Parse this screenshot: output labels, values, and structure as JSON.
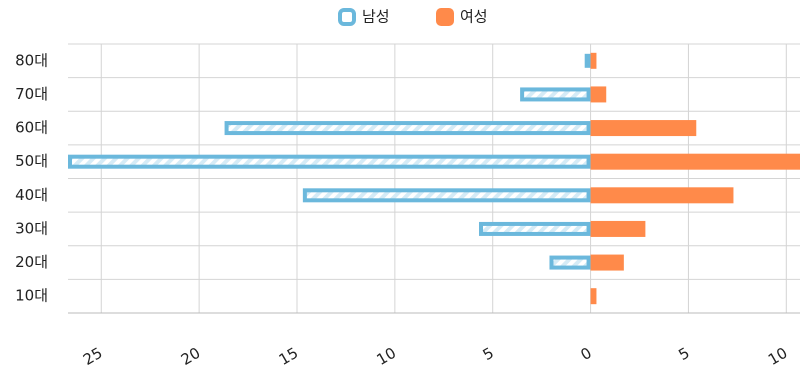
{
  "chart_data": {
    "type": "bar",
    "orientation": "horizontal",
    "categories": [
      "80대",
      "70대",
      "60대",
      "50대",
      "40대",
      "30대",
      "20대",
      "10대"
    ],
    "series": [
      {
        "name": "남성",
        "color": "#6bb8dc",
        "values": [
          -0.3,
          -3.6,
          -18.7,
          -26.7,
          -14.7,
          -5.7,
          -2.1,
          0
        ]
      },
      {
        "name": "여성",
        "color": "#ff8a4a",
        "values": [
          0.3,
          0.8,
          5.4,
          10.7,
          7.3,
          2.8,
          1.7,
          0.3
        ]
      }
    ],
    "xlim": [
      -26.7,
      10.7
    ],
    "xticks": [
      {
        "value": -25,
        "label": "25"
      },
      {
        "value": -20,
        "label": "20"
      },
      {
        "value": -15,
        "label": "15"
      },
      {
        "value": -10,
        "label": "10"
      },
      {
        "value": -5,
        "label": "5"
      },
      0,
      5,
      10
    ],
    "grid": true,
    "legend": "top"
  }
}
